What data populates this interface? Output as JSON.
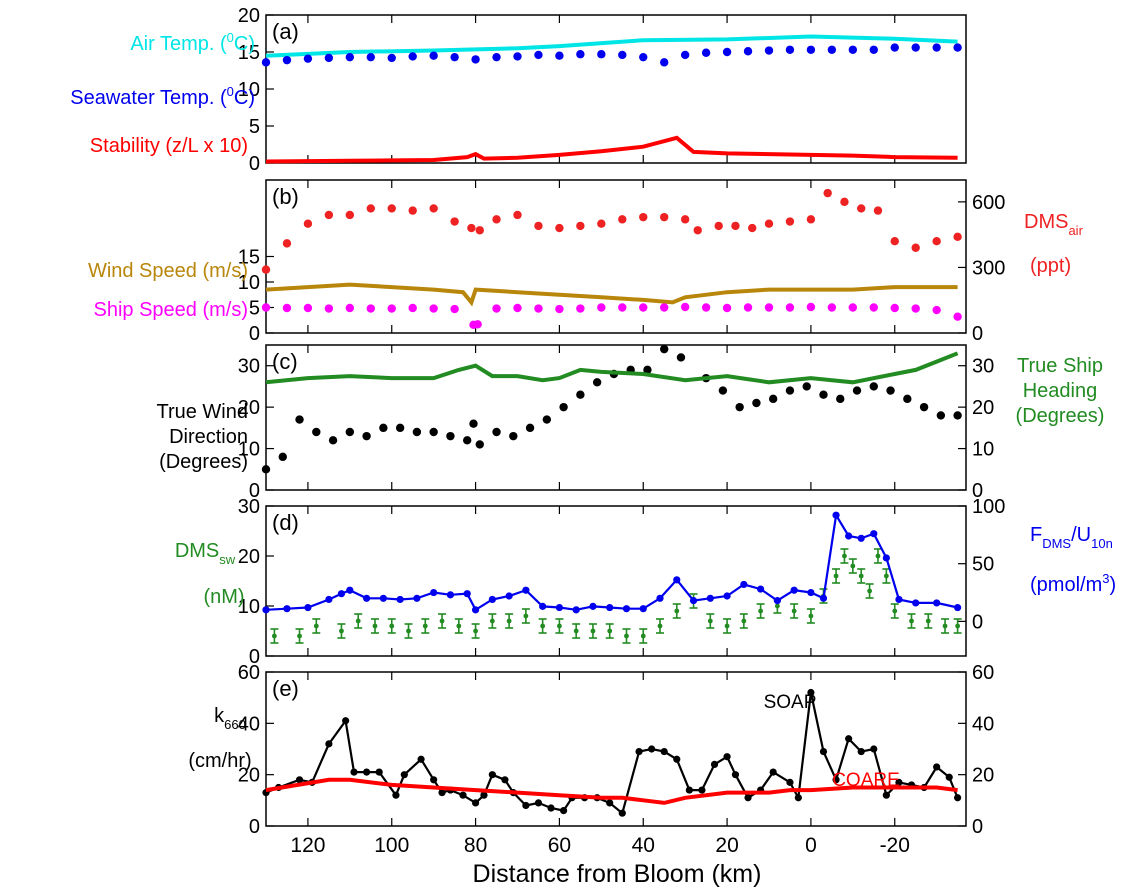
{
  "chart_data": [
    {
      "panel_label": "(a)",
      "type": "line",
      "ylim": [
        0,
        20
      ],
      "yticks_left": [
        "0",
        "5",
        "10",
        "15",
        "20"
      ],
      "series": [
        {
          "name": "Air Temp. (°C)",
          "color": "#00e5e5",
          "style": "line",
          "x": [
            130,
            110,
            90,
            70,
            60,
            40,
            20,
            0,
            -20,
            -35
          ],
          "y": [
            14.5,
            15.0,
            15.2,
            15.5,
            15.8,
            16.6,
            16.7,
            17.1,
            16.8,
            16.4
          ]
        },
        {
          "name": "Seawater Temp. (°C)",
          "color": "#0000ee",
          "style": "dots",
          "x": [
            130,
            125,
            120,
            115,
            110,
            105,
            100,
            95,
            90,
            85,
            80,
            75,
            70,
            65,
            60,
            55,
            50,
            45,
            40,
            35,
            30,
            25,
            20,
            15,
            10,
            5,
            0,
            -5,
            -10,
            -15,
            -20,
            -25,
            -30,
            -35
          ],
          "y": [
            13.6,
            13.9,
            14.1,
            14.2,
            14.3,
            14.3,
            14.2,
            14.4,
            14.5,
            14.3,
            14.0,
            14.3,
            14.4,
            14.6,
            14.5,
            14.7,
            14.7,
            14.6,
            14.3,
            13.6,
            14.6,
            14.9,
            15.0,
            15.1,
            15.2,
            15.3,
            15.3,
            15.3,
            15.3,
            15.3,
            15.6,
            15.6,
            15.6,
            15.6
          ]
        },
        {
          "name": "Stability (z/L x 10)",
          "color": "#ff0000",
          "style": "line",
          "x": [
            130,
            110,
            90,
            82,
            80,
            78,
            70,
            60,
            50,
            40,
            32,
            28,
            20,
            10,
            0,
            -10,
            -20,
            -35
          ],
          "y": [
            0.2,
            0.3,
            0.4,
            0.8,
            1.2,
            0.6,
            0.7,
            1.1,
            1.6,
            2.2,
            3.4,
            1.5,
            1.3,
            1.2,
            1.1,
            1.0,
            0.8,
            0.7
          ]
        }
      ]
    },
    {
      "panel_label": "(b)",
      "type": "line",
      "ylim": [
        0,
        30
      ],
      "yticks_left": [
        "0",
        "5",
        "10",
        "15"
      ],
      "y2lim": [
        0,
        700
      ],
      "yticks_right": [
        "0",
        "300",
        "600"
      ],
      "series": [
        {
          "name": "DMS_air (ppt)",
          "axis": "right",
          "color": "#ee2222",
          "style": "dots",
          "x": [
            130,
            125,
            120,
            115,
            110,
            105,
            100,
            95,
            90,
            85,
            81,
            79,
            75,
            70,
            65,
            60,
            55,
            50,
            45,
            40,
            35,
            30,
            27,
            22,
            18,
            14,
            10,
            5,
            0,
            -4,
            -8,
            -12,
            -16,
            -20,
            -25,
            -30,
            -35
          ],
          "y": [
            290,
            410,
            500,
            540,
            540,
            570,
            570,
            560,
            570,
            510,
            480,
            470,
            520,
            540,
            490,
            480,
            490,
            500,
            520,
            530,
            530,
            520,
            470,
            490,
            490,
            480,
            500,
            510,
            520,
            640,
            600,
            570,
            560,
            420,
            390,
            420,
            440
          ]
        },
        {
          "name": "Wind Speed (m/s)",
          "axis": "left",
          "color": "#b8860b",
          "style": "line",
          "x": [
            130,
            120,
            110,
            100,
            90,
            83,
            81,
            80,
            70,
            60,
            50,
            40,
            33,
            30,
            20,
            10,
            0,
            -10,
            -20,
            -35
          ],
          "y": [
            8.5,
            9.0,
            9.5,
            9.0,
            8.5,
            8.0,
            6.0,
            8.5,
            8.0,
            7.5,
            7.0,
            6.5,
            6.0,
            7.0,
            8.0,
            8.5,
            8.5,
            8.5,
            9.0,
            9.0
          ]
        },
        {
          "name": "Ship Speed (m/s)",
          "axis": "left",
          "color": "#ff00ff",
          "style": "dots",
          "x": [
            130,
            125,
            120,
            115,
            110,
            105,
            100,
            95,
            90,
            85,
            80.5,
            79.5,
            75,
            70,
            65,
            60,
            55,
            50,
            45,
            40,
            35,
            30,
            25,
            20,
            15,
            10,
            5,
            0,
            -5,
            -10,
            -15,
            -20,
            -25,
            -30,
            -35
          ],
          "y": [
            5.0,
            4.9,
            4.9,
            4.8,
            4.9,
            4.8,
            4.8,
            4.9,
            4.8,
            4.7,
            1.6,
            1.7,
            4.8,
            4.9,
            4.8,
            4.7,
            4.8,
            5.0,
            5.0,
            5.0,
            5.0,
            5.1,
            5.0,
            4.9,
            5.0,
            5.0,
            5.0,
            5.1,
            5.0,
            5.0,
            5.0,
            4.9,
            4.8,
            4.5,
            3.2
          ]
        }
      ]
    },
    {
      "panel_label": "(c)",
      "type": "line",
      "ylim": [
        0,
        35
      ],
      "yticks_left": [
        "0",
        "10",
        "20",
        "30"
      ],
      "yticks_right": [
        "0",
        "10",
        "20",
        "30"
      ],
      "series": [
        {
          "name": "True Wind Direction (Degrees)",
          "axis": "left",
          "color": "#000000",
          "style": "dots",
          "x": [
            130,
            126,
            122,
            118,
            114,
            110,
            106,
            102,
            98,
            94,
            90,
            86,
            82,
            80.5,
            79,
            75,
            71,
            67,
            63,
            59,
            55,
            51,
            47,
            43,
            39,
            35,
            31,
            25,
            21,
            17,
            13,
            9,
            5,
            1,
            -3,
            -7,
            -11,
            -15,
            -19,
            -23,
            -27,
            -31,
            -35
          ],
          "y": [
            5,
            8,
            17,
            14,
            12,
            14,
            13,
            15,
            15,
            14,
            14,
            13,
            12,
            16,
            11,
            14,
            13,
            15,
            17,
            20,
            23,
            26,
            28,
            29,
            29,
            34,
            32,
            27,
            24,
            20,
            21,
            22,
            24,
            25,
            23,
            22,
            24,
            25,
            24,
            22,
            20,
            18,
            18
          ]
        },
        {
          "name": "True Ship Heading (Degrees)",
          "axis": "right",
          "color": "#228b22",
          "style": "line",
          "x": [
            130,
            120,
            110,
            100,
            90,
            84,
            80,
            76,
            70,
            64,
            60,
            55,
            50,
            40,
            30,
            20,
            10,
            0,
            -5,
            -10,
            -20,
            -25,
            -30,
            -35
          ],
          "y": [
            26,
            27,
            27.5,
            27,
            27,
            29,
            30,
            27.5,
            27.5,
            26.5,
            27,
            29,
            28.5,
            28,
            26.5,
            27.5,
            26,
            27,
            26.5,
            26,
            28,
            29,
            31,
            33
          ]
        }
      ]
    },
    {
      "panel_label": "(d)",
      "type": "line",
      "ylim": [
        0,
        30
      ],
      "yticks_left": [
        "0",
        "10",
        "20",
        "30"
      ],
      "y2lim": [
        -30,
        100
      ],
      "yticks_right": [
        "0",
        "50",
        "100"
      ],
      "series": [
        {
          "name": "DMS_sw (nM)",
          "axis": "left",
          "color": "#228b22",
          "style": "errorbars",
          "x": [
            128,
            122,
            118,
            112,
            108,
            104,
            100,
            96,
            92,
            88,
            84,
            80,
            76,
            72,
            68,
            64,
            60,
            56,
            52,
            48,
            44,
            40,
            36,
            32,
            28,
            24,
            20,
            16,
            12,
            8,
            4,
            0,
            -3,
            -6,
            -8,
            -10,
            -12,
            -14,
            -16,
            -18,
            -20,
            -24,
            -28,
            -32,
            -35
          ],
          "y": [
            4,
            4,
            6,
            5,
            7,
            6,
            6,
            5,
            6,
            7,
            6,
            5,
            7,
            7,
            8,
            6,
            6,
            5,
            5,
            5,
            4,
            4,
            6,
            9,
            11,
            7,
            6,
            7,
            9,
            10,
            9,
            8,
            12,
            16,
            20,
            18,
            16,
            13,
            20,
            16,
            9,
            7,
            7,
            6,
            6
          ]
        },
        {
          "name": "F_DMS/U_10n (pmol/m^3)",
          "axis": "right",
          "color": "#0000ee",
          "style": "line-dots",
          "x": [
            130,
            125,
            120,
            115,
            112,
            110,
            106,
            102,
            98,
            94,
            90,
            86,
            82,
            80,
            76,
            72,
            68,
            64,
            60,
            56,
            52,
            48,
            44,
            40,
            36,
            32,
            28,
            24,
            20,
            16,
            12,
            8,
            4,
            0,
            -3,
            -6,
            -9,
            -12,
            -15,
            -18,
            -21,
            -25,
            -30,
            -35
          ],
          "y": [
            10,
            11,
            12,
            19,
            24,
            27,
            20,
            20,
            19,
            20,
            25,
            23,
            24,
            10,
            19,
            22,
            27,
            13,
            12,
            10,
            13,
            12,
            11,
            11,
            20,
            36,
            18,
            20,
            22,
            32,
            28,
            18,
            27,
            25,
            20,
            92,
            74,
            72,
            76,
            55,
            19,
            16,
            16,
            12
          ]
        }
      ]
    },
    {
      "panel_label": "(e)",
      "type": "line",
      "ylim": [
        0,
        60
      ],
      "yticks_left": [
        "0",
        "20",
        "40",
        "60"
      ],
      "yticks_right": [
        "0",
        "20",
        "40",
        "60"
      ],
      "xticks": [
        "120",
        "100",
        "80",
        "60",
        "40",
        "20",
        "0",
        "-20"
      ],
      "xlim": [
        130,
        -37
      ],
      "xlabel": "Distance from Bloom (km)",
      "series": [
        {
          "name": "SOAP",
          "axis": "left",
          "color": "#000000",
          "style": "line-dots",
          "x": [
            130,
            127,
            122,
            119,
            115,
            111,
            109,
            106,
            103,
            99,
            97,
            93,
            90,
            88,
            86,
            83,
            80,
            78,
            76,
            73,
            71,
            68,
            65,
            62,
            59,
            57,
            54,
            51,
            48,
            45,
            41,
            38,
            35,
            32,
            29,
            26,
            23,
            20,
            18,
            15,
            12,
            9,
            5,
            3,
            0,
            -3,
            -6,
            -9,
            -12,
            -15,
            -18,
            -21,
            -24,
            -27,
            -30,
            -33,
            -35
          ],
          "y": [
            13,
            15,
            18,
            17,
            32,
            41,
            21,
            21,
            21,
            12,
            20,
            26,
            18,
            13,
            14,
            12,
            9,
            12,
            20,
            18,
            13,
            8,
            9,
            7,
            6,
            11,
            11,
            11,
            9,
            5,
            29,
            30,
            29,
            26,
            14,
            14,
            24,
            27,
            20,
            11,
            14,
            21,
            17,
            11,
            52,
            29,
            18,
            34,
            29,
            30,
            12,
            17,
            16,
            15,
            23,
            19,
            11
          ]
        },
        {
          "name": "COARE",
          "axis": "left",
          "color": "#ff0000",
          "style": "line",
          "x": [
            130,
            115,
            110,
            100,
            90,
            80,
            70,
            60,
            50,
            45,
            40,
            35,
            30,
            20,
            10,
            5,
            0,
            -10,
            -20,
            -30,
            -35
          ],
          "y": [
            14,
            18,
            18,
            16,
            15,
            14,
            13,
            12,
            11,
            11,
            10,
            9,
            11,
            13,
            13,
            14,
            14,
            15,
            15,
            15,
            14
          ]
        }
      ]
    }
  ],
  "labels": {
    "a": {
      "air_temp": "Air Temp. (",
      "air_sup": "0",
      "air_end": "C)",
      "sw_temp": "Seawater Temp. (",
      "sw_sup": "0",
      "sw_end": "C)",
      "stability": "Stability (z/L x 10)"
    },
    "b": {
      "wind_speed": "Wind Speed (m/s)",
      "ship_speed": "Ship Speed (m/s)",
      "dms_air_main": "DMS",
      "dms_air_sub": "air",
      "dms_air_unit": "(ppt)"
    },
    "c": {
      "twd_1": "True Wind",
      "twd_2": "Direction",
      "twd_3": "(Degrees)",
      "tsh_1": "True Ship",
      "tsh_2": "Heading",
      "tsh_3": "(Degrees)"
    },
    "d": {
      "dms_sw_main": "DMS",
      "dms_sw_sub": "sw",
      "dms_sw_unit": "(nM)",
      "flux_f": "F",
      "flux_sub1": "DMS",
      "flux_slash": "/U",
      "flux_sub2": "10n",
      "flux_unit": "(pmol/m",
      "flux_sup": "3",
      "flux_end": ")"
    },
    "e": {
      "k_main": "k",
      "k_sub": "660",
      "k_unit": "(cm/hr)",
      "soap": "SOAP",
      "coare": "COARE"
    }
  }
}
